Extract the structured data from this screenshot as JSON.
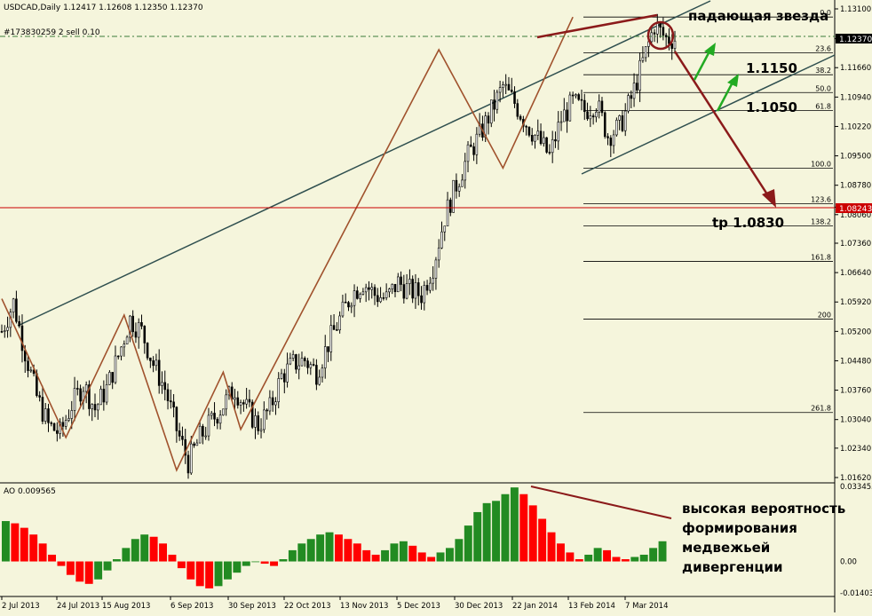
{
  "window": {
    "symbol_header": "USDCAD,Daily  1.12417 1.12608 1.12350 1.12370",
    "order_label": "#173830259 2 sell 0.10"
  },
  "price_axis": {
    "ticks": [
      "1.13100",
      "1.12370",
      "1.11660",
      "1.10940",
      "1.10220",
      "1.09500",
      "1.08780",
      "1.08243",
      "1.08060",
      "1.07360",
      "1.06640",
      "1.05920",
      "1.05200",
      "1.04480",
      "1.03760",
      "1.03040",
      "1.02340",
      "1.01620"
    ],
    "current_price": "1.12370",
    "marked_level": "1.08243"
  },
  "fib_levels": [
    "0.0",
    "23.6",
    "38.2",
    "50.0",
    "61.8",
    "100.0",
    "123.6",
    "138.2",
    "161.8",
    "200",
    "261.8"
  ],
  "annotations": {
    "shooting_star": "падающая звезда",
    "level_1": "1.1150",
    "level_2": "1.1050",
    "target": "tp 1.0830",
    "divergence_line1": "высокая вероятность",
    "divergence_line2": "формирования",
    "divergence_line3": "медвежьей",
    "divergence_line4": "дивергенции"
  },
  "indicator": {
    "label": "AO 0.009565",
    "ticks": [
      "0.033455",
      "0.00",
      "-0.014036"
    ]
  },
  "x_axis": {
    "ticks": [
      "2 Jul 2013",
      "24 Jul 2013",
      "15 Aug 2013",
      "6 Sep 2013",
      "30 Sep 2013",
      "22 Oct 2013",
      "13 Nov 2013",
      "5 Dec 2013",
      "30 Dec 2013",
      "22 Jan 2014",
      "13 Feb 2014",
      "7 Mar 2014"
    ]
  },
  "colors": {
    "background": "#f5f5dc",
    "candle": "#000000",
    "zigzag": "#a0522d",
    "channel": "#2f4f4f",
    "arrow_main": "#8b1a1a",
    "arrow_green": "#22aa22",
    "ao_up": "#228b22",
    "ao_down": "#ff0000",
    "red_level": "#cc0000",
    "current_price_bg": "#000000"
  },
  "chart_data": {
    "type": "candlestick",
    "title": "USDCAD,Daily",
    "x_ticks": [
      "2 Jul 2013",
      "24 Jul 2013",
      "15 Aug 2013",
      "6 Sep 2013",
      "30 Sep 2013",
      "22 Oct 2013",
      "13 Nov 2013",
      "5 Dec 2013",
      "30 Dec 2013",
      "22 Jan 2014",
      "13 Feb 2014",
      "7 Mar 2014"
    ],
    "ylim": [
      1.0162,
      1.131
    ],
    "close_path": [
      [
        0,
        1.052
      ],
      [
        4,
        1.059
      ],
      [
        8,
        1.047
      ],
      [
        12,
        1.036
      ],
      [
        16,
        1.029
      ],
      [
        20,
        1.027
      ],
      [
        24,
        1.034
      ],
      [
        28,
        1.039
      ],
      [
        32,
        1.033
      ],
      [
        36,
        1.038
      ],
      [
        40,
        1.046
      ],
      [
        44,
        1.055
      ],
      [
        48,
        1.052
      ],
      [
        52,
        1.044
      ],
      [
        56,
        1.038
      ],
      [
        60,
        1.028
      ],
      [
        64,
        1.02
      ],
      [
        68,
        1.026
      ],
      [
        72,
        1.03
      ],
      [
        76,
        1.034
      ],
      [
        80,
        1.038
      ],
      [
        84,
        1.033
      ],
      [
        88,
        1.029
      ],
      [
        92,
        1.033
      ],
      [
        96,
        1.041
      ],
      [
        100,
        1.044
      ],
      [
        104,
        1.045
      ],
      [
        108,
        1.042
      ],
      [
        112,
        1.049
      ],
      [
        116,
        1.055
      ],
      [
        120,
        1.061
      ],
      [
        124,
        1.064
      ],
      [
        128,
        1.061
      ],
      [
        132,
        1.06
      ],
      [
        136,
        1.064
      ],
      [
        140,
        1.062
      ],
      [
        144,
        1.061
      ],
      [
        148,
        1.068
      ],
      [
        152,
        1.08
      ],
      [
        156,
        1.088
      ],
      [
        160,
        1.095
      ],
      [
        164,
        1.1
      ],
      [
        168,
        1.106
      ],
      [
        172,
        1.112
      ],
      [
        176,
        1.108
      ],
      [
        180,
        1.103
      ],
      [
        184,
        1.099
      ],
      [
        188,
        1.095
      ],
      [
        192,
        1.104
      ],
      [
        196,
        1.108
      ],
      [
        200,
        1.106
      ],
      [
        204,
        1.108
      ],
      [
        208,
        1.1
      ],
      [
        212,
        1.102
      ],
      [
        216,
        1.109
      ],
      [
        220,
        1.118
      ],
      [
        224,
        1.127
      ],
      [
        228,
        1.1237
      ]
    ],
    "zigzag": [
      [
        0,
        1.06
      ],
      [
        22,
        1.026
      ],
      [
        42,
        1.056
      ],
      [
        60,
        1.018
      ],
      [
        76,
        1.042
      ],
      [
        82,
        1.028
      ],
      [
        150,
        1.121
      ],
      [
        172,
        1.092
      ],
      [
        196,
        1.129
      ]
    ],
    "ao": [
      0.018,
      0.017,
      0.015,
      0.012,
      0.008,
      0.003,
      -0.002,
      -0.006,
      -0.009,
      -0.01,
      -0.008,
      -0.004,
      0.001,
      0.006,
      0.01,
      0.012,
      0.011,
      0.008,
      0.003,
      -0.003,
      -0.008,
      -0.011,
      -0.012,
      -0.011,
      -0.008,
      -0.005,
      -0.002,
      0.0,
      -0.001,
      -0.002,
      0.001,
      0.005,
      0.008,
      0.01,
      0.012,
      0.013,
      0.012,
      0.01,
      0.008,
      0.005,
      0.003,
      0.005,
      0.008,
      0.009,
      0.007,
      0.004,
      0.002,
      0.004,
      0.006,
      0.01,
      0.016,
      0.022,
      0.026,
      0.027,
      0.03,
      0.033,
      0.03,
      0.025,
      0.019,
      0.013,
      0.008,
      0.004,
      0.001,
      0.003,
      0.006,
      0.005,
      0.002,
      0.001,
      0.002,
      0.003,
      0.006,
      0.009
    ]
  }
}
